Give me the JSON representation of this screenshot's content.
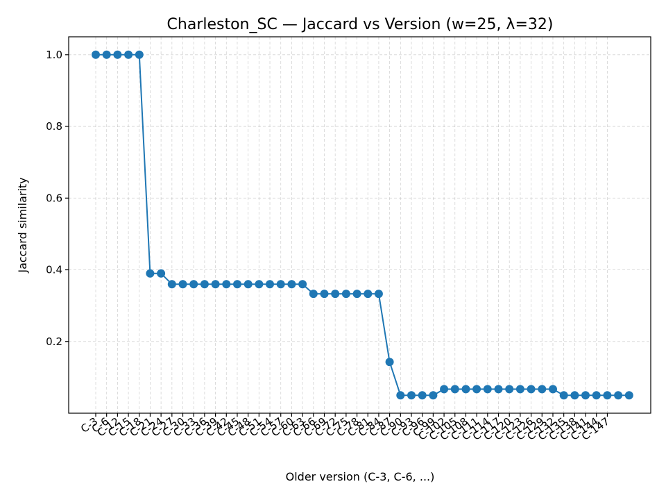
{
  "chart_data": {
    "type": "line",
    "title": "Charleston_SC — Jaccard vs Version (w=25, λ=32)",
    "xlabel": "Older version (C-3, C-6, ...)",
    "ylabel": "Jaccard similarity",
    "categories": [
      "C-3",
      "C-6",
      "C-9",
      "C-12",
      "C-15",
      "C-18",
      "C-21",
      "C-24",
      "C-27",
      "C-30",
      "C-33",
      "C-36",
      "C-39",
      "C-42",
      "C-45",
      "C-48",
      "C-51",
      "C-54",
      "C-57",
      "C-60",
      "C-63",
      "C-66",
      "C-69",
      "C-72",
      "C-75",
      "C-78",
      "C-81",
      "C-84",
      "C-87",
      "C-90",
      "C-93",
      "C-96",
      "C-99",
      "C-102",
      "C-105",
      "C-108",
      "C-111",
      "C-114",
      "C-117",
      "C-120",
      "C-123",
      "C-126",
      "C-129",
      "C-132",
      "C-135",
      "C-138",
      "C-141",
      "C-144",
      "C-147",
      "C-150"
    ],
    "series": [
      {
        "name": "",
        "values": [
          1.0,
          1.0,
          1.0,
          1.0,
          1.0,
          0.39,
          0.39,
          0.36,
          0.36,
          0.36,
          0.36,
          0.36,
          0.36,
          0.36,
          0.36,
          0.36,
          0.36,
          0.36,
          0.36,
          0.36,
          0.333,
          0.333,
          0.333,
          0.333,
          0.333,
          0.333,
          0.333,
          0.143,
          0.05,
          0.05,
          0.05,
          0.05,
          0.067,
          0.067,
          0.067,
          0.067,
          0.067,
          0.067,
          0.067,
          0.067,
          0.067,
          0.067,
          0.067,
          0.05,
          0.05,
          0.05,
          0.05,
          0.05,
          0.05,
          0.05
        ],
        "color": "#1f77b4"
      }
    ],
    "x_tick_labels": [
      "C-3",
      "C-6",
      "C-12",
      "C-15",
      "C-18",
      "C-21",
      "C-24",
      "C-27",
      "C-30",
      "C-33",
      "C-36",
      "C-39",
      "C-42",
      "C-45",
      "C-48",
      "C-51",
      "C-54",
      "C-57",
      "C-60",
      "C-63",
      "C-66",
      "C-69",
      "C-72",
      "C-75",
      "C-78",
      "C-81",
      "C-84",
      "C-87",
      "C-90",
      "C-93",
      "C-96",
      "C-99",
      "C-102",
      "C-105",
      "C-108",
      "C-111",
      "C-114",
      "C-117",
      "C-120",
      "C-123",
      "C-126",
      "C-129",
      "C-132",
      "C-135",
      "C-138",
      "C-141",
      "C-144",
      "C-147"
    ],
    "y_ticks": [
      0.2,
      0.4,
      0.6,
      0.8,
      1.0
    ],
    "ylim": [
      0.0,
      1.05
    ],
    "grid": true,
    "line_color": "#1f77b4",
    "marker": "circle"
  }
}
